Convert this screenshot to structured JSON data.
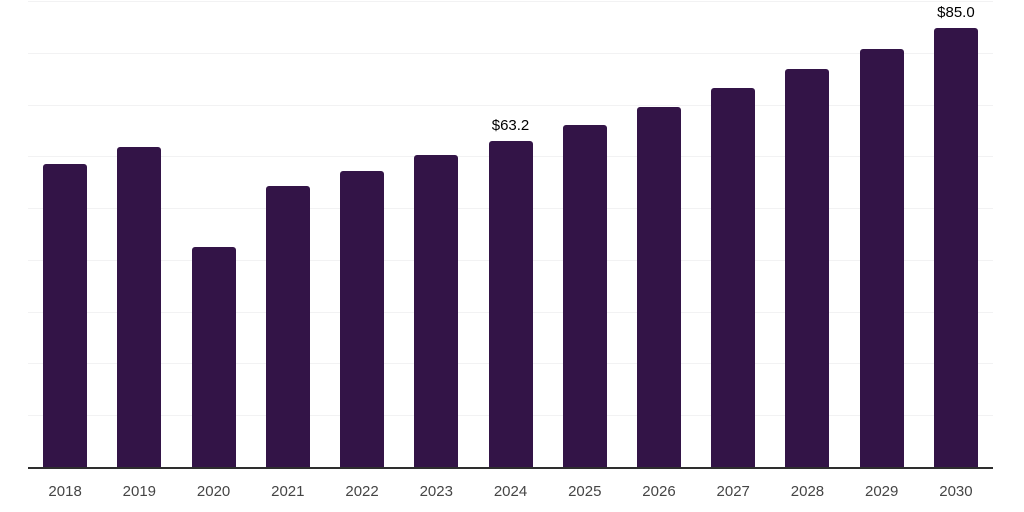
{
  "chart_data": {
    "type": "bar",
    "title": "",
    "xlabel": "",
    "ylabel": "",
    "categories": [
      "2018",
      "2019",
      "2020",
      "2021",
      "2022",
      "2023",
      "2024",
      "2025",
      "2026",
      "2027",
      "2028",
      "2029",
      "2030"
    ],
    "values": [
      58.8,
      62.0,
      42.6,
      54.5,
      57.4,
      60.4,
      63.2,
      66.2,
      69.7,
      73.3,
      77.0,
      80.9,
      85.0
    ],
    "bar_labels": [
      "",
      "",
      "",
      "",
      "",
      "",
      "$63.2",
      "",
      "",
      "",
      "",
      "",
      "$85.0"
    ],
    "ylim": [
      0,
      90
    ],
    "grid_step": 10,
    "grid": true,
    "y_tick_labels_visible": false,
    "legend_visible": false,
    "colors": {
      "bar": "#331447",
      "axis": "#2e2e2e",
      "gridline": "#f2f2f3",
      "tick_label": "#454545",
      "value_label": "#000000",
      "background": "#ffffff"
    }
  }
}
